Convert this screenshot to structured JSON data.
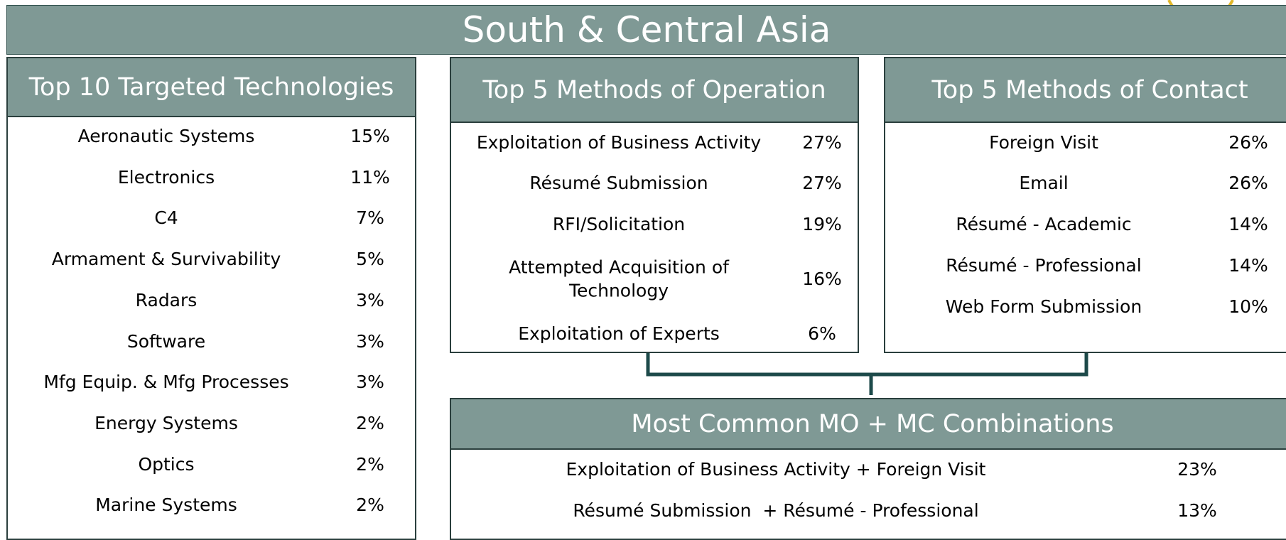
{
  "header": {
    "title": "South & Central Asia"
  },
  "panels": [
    {
      "title": "Top 10 Targeted Technologies",
      "rows": [
        [
          "Aeronautic Systems",
          "15%"
        ],
        [
          "Electronics",
          "11%"
        ],
        [
          "C4",
          "7%"
        ],
        [
          "Armament & Survivability",
          "5%"
        ],
        [
          "Radars",
          "3%"
        ],
        [
          "Software",
          "3%"
        ],
        [
          "Mfg Equip. & Mfg Processes",
          "3%"
        ],
        [
          "Energy Systems",
          "2%"
        ],
        [
          "Optics",
          "2%"
        ],
        [
          "Marine Systems",
          "2%"
        ]
      ]
    },
    {
      "title": "Top 5 Methods of Operation",
      "rows": [
        [
          "Exploitation of Business Activity",
          "27%"
        ],
        [
          "Résumé Submission",
          "27%"
        ],
        [
          "RFI/Solicitation",
          "19%"
        ],
        [
          "Attempted Acquisition of Technology",
          "16%"
        ],
        [
          "Exploitation of Experts",
          "6%"
        ]
      ]
    },
    {
      "title": "Top 5 Methods of Contact",
      "rows": [
        [
          "Foreign Visit",
          "26%"
        ],
        [
          "Email",
          "26%"
        ],
        [
          "Résumé - Academic",
          "14%"
        ],
        [
          "Résumé - Professional",
          "14%"
        ],
        [
          "Web Form Submission",
          "10%"
        ]
      ]
    },
    {
      "title": "Most Common MO + MC Combinations",
      "rows": [
        [
          "Exploitation of Business Activity + Foreign Visit",
          "23%"
        ],
        [
          "Résumé Submission  + Résumé - Professional",
          "13%"
        ]
      ]
    }
  ]
}
